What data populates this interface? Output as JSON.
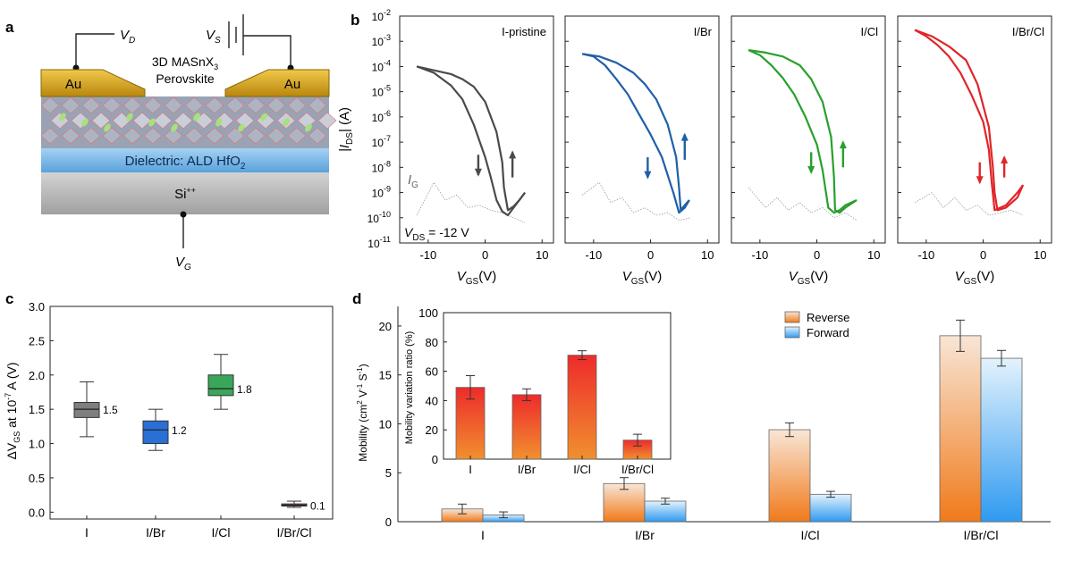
{
  "panel_letters": {
    "a": "a",
    "b": "b",
    "c": "c",
    "d": "d"
  },
  "colors": {
    "gold": "#d8a623",
    "dielectric": "#6fb1e6",
    "silicon": "#b8b8b8",
    "pristine": "#4a4a4a",
    "br": "#1f5fa8",
    "cl": "#28a02c",
    "brcl": "#e0252a",
    "reverse_top": "#f7e2cf",
    "reverse_bottom": "#f07a1a",
    "forward_top": "#e0f0fc",
    "forward_bottom": "#2f9af0",
    "inset_top": "#ef2a2a",
    "inset_bottom": "#f08a30"
  },
  "device": {
    "vd_label": "V",
    "vd_sub": "D",
    "vs_label": "V",
    "vs_sub": "S",
    "vg_label": "V",
    "vg_sub": "G",
    "au_left": "Au",
    "au_right": "Au",
    "perovskite_line1": "3D MASnX",
    "perovskite_sub": "3",
    "perovskite_line2": "Perovskite",
    "dielectric_text": "Dielectric: ALD HfO",
    "dielectric_sub": "2",
    "si_text": "Si",
    "si_sup": "++"
  },
  "chart_data": [
    {
      "type": "line",
      "panel": "b",
      "description_scale": "log",
      "ylabel": "|I_DS| (A)",
      "ylabel_parts": {
        "main": "|I",
        "sub": "DS",
        "tail": "| (A)"
      },
      "xlabel_parts": {
        "main": "V",
        "sub": "GS",
        "tail": "(V)"
      },
      "xlim": [
        -15,
        12
      ],
      "xticks": [
        "-10",
        "0",
        "10"
      ],
      "ylim_exp": [
        -11,
        -2
      ],
      "yticks": [
        "10",
        "10",
        "10",
        "10",
        "10",
        "10",
        "10",
        "10",
        "10",
        "10"
      ],
      "ytick_exps": [
        "-2",
        "-3",
        "-4",
        "-5",
        "-6",
        "-7",
        "-8",
        "-9",
        "-10",
        "-11"
      ],
      "annotations": {
        "ig_main": "I",
        "ig_sub": "G",
        "vds_main": "V",
        "vds_sub": "DS",
        "vds_tail": " = -12 V"
      },
      "subplots": [
        {
          "title": "I-pristine",
          "color_key": "pristine",
          "reverse": [
            [
              -12,
              -4.0
            ],
            [
              -9,
              -4.25
            ],
            [
              -6,
              -4.75
            ],
            [
              -4,
              -5.3
            ],
            [
              -2,
              -6.3
            ],
            [
              0,
              -7.6
            ],
            [
              1,
              -8.4
            ],
            [
              2,
              -9.3
            ],
            [
              3,
              -9.75
            ],
            [
              4,
              -9.9
            ],
            [
              5,
              -9.6
            ],
            [
              6,
              -9.3
            ],
            [
              7,
              -9.0
            ]
          ],
          "forward": [
            [
              7,
              -9.0
            ],
            [
              6,
              -9.3
            ],
            [
              5,
              -9.55
            ],
            [
              4,
              -9.7
            ],
            [
              3.3,
              -8.8
            ],
            [
              3,
              -7.8
            ],
            [
              2,
              -6.6
            ],
            [
              0,
              -5.4
            ],
            [
              -2,
              -4.8
            ],
            [
              -4,
              -4.5
            ],
            [
              -6,
              -4.3
            ],
            [
              -9,
              -4.15
            ],
            [
              -12,
              -4.0
            ]
          ],
          "gate": [
            [
              -12,
              -9.9
            ],
            [
              -9,
              -8.6
            ],
            [
              -7,
              -9.3
            ],
            [
              -5,
              -9.1
            ],
            [
              -3,
              -9.6
            ],
            [
              -1,
              -9.5
            ],
            [
              1,
              -9.7
            ],
            [
              3,
              -9.8
            ],
            [
              5,
              -10.0
            ],
            [
              7,
              -10.2
            ]
          ],
          "arrows": {
            "down": [
              -1.2,
              -7.5,
              -8.3
            ],
            "up": [
              4.8,
              -8.4,
              -7.4
            ]
          }
        },
        {
          "title": "I/Br",
          "color_key": "br",
          "reverse": [
            [
              -12,
              -3.5
            ],
            [
              -10,
              -3.6
            ],
            [
              -8,
              -3.95
            ],
            [
              -6,
              -4.5
            ],
            [
              -4,
              -5.1
            ],
            [
              -2,
              -5.9
            ],
            [
              0,
              -6.7
            ],
            [
              2,
              -7.6
            ],
            [
              4,
              -9.0
            ],
            [
              5,
              -9.8
            ],
            [
              6,
              -9.6
            ],
            [
              6.8,
              -9.3
            ]
          ],
          "forward": [
            [
              6.8,
              -9.3
            ],
            [
              6,
              -9.5
            ],
            [
              5.3,
              -9.7
            ],
            [
              5,
              -8.8
            ],
            [
              4.5,
              -7.6
            ],
            [
              3,
              -6.3
            ],
            [
              1,
              -5.3
            ],
            [
              -1,
              -4.7
            ],
            [
              -3,
              -4.25
            ],
            [
              -6,
              -3.85
            ],
            [
              -9,
              -3.6
            ],
            [
              -12,
              -3.5
            ]
          ],
          "gate": [
            [
              -12,
              -9.1
            ],
            [
              -9,
              -8.6
            ],
            [
              -7,
              -9.4
            ],
            [
              -5,
              -9.2
            ],
            [
              -3,
              -9.8
            ],
            [
              -1,
              -9.6
            ],
            [
              1,
              -9.9
            ],
            [
              3,
              -9.8
            ],
            [
              5,
              -10.1
            ],
            [
              7,
              -10.0
            ]
          ],
          "arrows": {
            "down": [
              -0.5,
              -7.6,
              -8.4
            ],
            "up": [
              6.0,
              -7.7,
              -6.7
            ]
          }
        },
        {
          "title": "I/Cl",
          "color_key": "cl",
          "reverse": [
            [
              -12,
              -3.35
            ],
            [
              -10,
              -3.55
            ],
            [
              -8,
              -3.95
            ],
            [
              -6,
              -4.45
            ],
            [
              -4,
              -5.1
            ],
            [
              -2,
              -6.0
            ],
            [
              0,
              -7.1
            ],
            [
              1,
              -8.1
            ],
            [
              2,
              -9.6
            ],
            [
              3,
              -9.8
            ],
            [
              4,
              -9.7
            ],
            [
              5,
              -9.5
            ],
            [
              7,
              -9.3
            ]
          ],
          "forward": [
            [
              7,
              -9.3
            ],
            [
              5,
              -9.6
            ],
            [
              4,
              -9.8
            ],
            [
              3.2,
              -9.7
            ],
            [
              3,
              -8.4
            ],
            [
              2.5,
              -6.8
            ],
            [
              1,
              -5.4
            ],
            [
              -1,
              -4.5
            ],
            [
              -3,
              -3.95
            ],
            [
              -6,
              -3.6
            ],
            [
              -9,
              -3.45
            ],
            [
              -12,
              -3.35
            ]
          ],
          "gate": [
            [
              -12,
              -8.8
            ],
            [
              -9,
              -9.6
            ],
            [
              -7,
              -9.2
            ],
            [
              -5,
              -9.7
            ],
            [
              -3,
              -9.4
            ],
            [
              -1,
              -9.8
            ],
            [
              1,
              -9.6
            ],
            [
              3,
              -10.0
            ],
            [
              5,
              -9.8
            ],
            [
              7,
              -10.1
            ]
          ],
          "arrows": {
            "down": [
              -1.0,
              -7.4,
              -8.2
            ],
            "up": [
              4.6,
              -8.0,
              -7.0
            ]
          }
        },
        {
          "title": "I/Br/Cl",
          "color_key": "brcl",
          "reverse": [
            [
              -12,
              -2.55
            ],
            [
              -10,
              -2.8
            ],
            [
              -8,
              -3.15
            ],
            [
              -6,
              -3.6
            ],
            [
              -4,
              -4.25
            ],
            [
              -2,
              -5.15
            ],
            [
              0,
              -6.2
            ],
            [
              1,
              -7.3
            ],
            [
              1.5,
              -8.6
            ],
            [
              2,
              -9.7
            ],
            [
              4,
              -9.5
            ],
            [
              6,
              -9.0
            ],
            [
              7,
              -8.7
            ]
          ],
          "forward": [
            [
              7,
              -8.7
            ],
            [
              6,
              -9.2
            ],
            [
              4,
              -9.6
            ],
            [
              2.5,
              -9.7
            ],
            [
              2,
              -9.0
            ],
            [
              1.7,
              -8.0
            ],
            [
              1,
              -6.4
            ],
            [
              -1,
              -4.7
            ],
            [
              -3,
              -3.75
            ],
            [
              -6,
              -3.2
            ],
            [
              -9,
              -2.8
            ],
            [
              -12,
              -2.55
            ]
          ],
          "gate": [
            [
              -12,
              -9.4
            ],
            [
              -9,
              -9.0
            ],
            [
              -7,
              -9.6
            ],
            [
              -5,
              -9.2
            ],
            [
              -3,
              -9.7
            ],
            [
              -1,
              -9.5
            ],
            [
              1,
              -9.9
            ],
            [
              3,
              -9.8
            ],
            [
              5,
              -9.7
            ],
            [
              7,
              -9.9
            ]
          ],
          "arrows": {
            "down": [
              -0.6,
              -7.8,
              -8.6
            ],
            "up": [
              3.7,
              -8.4,
              -7.6
            ]
          }
        }
      ]
    },
    {
      "type": "box",
      "panel": "c",
      "ylabel_parts": {
        "pre": "ΔV",
        "sub": "GS",
        "mid": " at 10",
        "sup": "-7",
        "tail": " A (V)"
      },
      "ylim": [
        -0.1,
        3.0
      ],
      "yticks": [
        "0.0",
        "0.5",
        "1.0",
        "1.5",
        "2.0",
        "2.5",
        "3.0"
      ],
      "categories": [
        "I",
        "I/Br",
        "I/Cl",
        "I/Br/Cl"
      ],
      "boxes": [
        {
          "min": 1.1,
          "q1": 1.38,
          "median": 1.5,
          "q3": 1.6,
          "max": 1.9,
          "label": "1.5",
          "color": "#7f7f7f"
        },
        {
          "min": 0.9,
          "q1": 1.0,
          "median": 1.2,
          "q3": 1.33,
          "max": 1.5,
          "label": "1.2",
          "color": "#2a6fd6"
        },
        {
          "min": 1.5,
          "q1": 1.7,
          "median": 1.8,
          "q3": 2.0,
          "max": 2.3,
          "label": "1.8",
          "color": "#3aa65a"
        },
        {
          "min": 0.07,
          "q1": 0.09,
          "median": 0.1,
          "q3": 0.12,
          "max": 0.16,
          "label": "0.1",
          "color": "#a83a3a"
        }
      ]
    },
    {
      "type": "bar",
      "panel": "d",
      "ylabel_parts": {
        "pre": "Mobility (cm",
        "sup1": "2",
        "mid": " V",
        "sup2": "-1",
        "mid2": " S",
        "sup3": "-1",
        "tail": ")"
      },
      "ylim": [
        0,
        22
      ],
      "yticks": [
        "0",
        "5",
        "10",
        "15",
        "20"
      ],
      "categories": [
        "I",
        "I/Br",
        "I/Cl",
        "I/Br/Cl"
      ],
      "series": [
        {
          "name": "Reverse",
          "values": [
            1.3,
            3.9,
            9.4,
            19.0
          ],
          "errors": [
            0.5,
            0.6,
            0.7,
            1.6
          ]
        },
        {
          "name": "Forward",
          "values": [
            0.7,
            2.1,
            2.8,
            16.7
          ],
          "errors": [
            0.3,
            0.3,
            0.3,
            0.8
          ]
        }
      ],
      "inset": {
        "type": "bar",
        "ylabel": "Mobility variation ratio (%)",
        "ylim": [
          0,
          100
        ],
        "yticks": [
          "0",
          "20",
          "40",
          "60",
          "80",
          "100"
        ],
        "categories": [
          "I",
          "I/Br",
          "I/Cl",
          "I/Br/Cl"
        ],
        "values": [
          49,
          44,
          71,
          13
        ],
        "errors": [
          8,
          4,
          3,
          4
        ]
      }
    }
  ]
}
